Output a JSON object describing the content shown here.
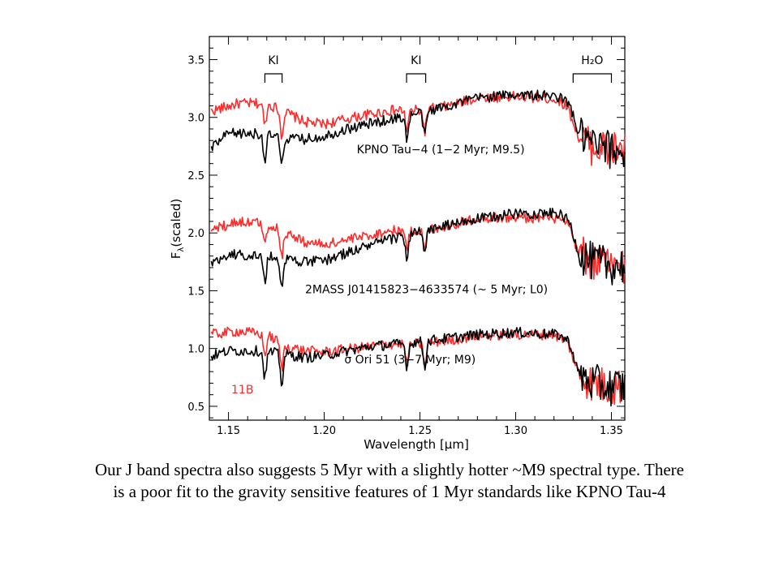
{
  "chart_data": {
    "type": "line",
    "xlabel": "Wavelength [μm]",
    "ylabel_main": "F",
    "ylabel_sub": "λ",
    "ylabel_rest": "(scaled)",
    "xlim": [
      1.14,
      1.357
    ],
    "ylim": [
      0.38,
      3.7
    ],
    "xticks": [
      1.15,
      1.2,
      1.25,
      1.3,
      1.35
    ],
    "xtick_labels": [
      "1.15",
      "1.20",
      "1.25",
      "1.30",
      "1.35"
    ],
    "yticks": [
      0.5,
      1.0,
      1.5,
      2.0,
      2.5,
      3.0,
      3.5
    ],
    "ytick_labels": [
      "0.5",
      "1.0",
      "1.5",
      "2.0",
      "2.5",
      "3.0",
      "3.5"
    ],
    "grid": false,
    "features": [
      {
        "label": "KI",
        "x1": 1.169,
        "x2": 1.178
      },
      {
        "label": "KI",
        "x1": 1.243,
        "x2": 1.253
      },
      {
        "label": "H₂O",
        "x1": 1.33,
        "x2": 1.35
      }
    ],
    "annotations": [
      {
        "text": "KPNO Tau−4 (1−2 Myr; M9.5)",
        "x": 1.217,
        "y": 2.69
      },
      {
        "text": "2MASS J01415823−4633574 (~ 5 Myr; L0)",
        "x": 1.19,
        "y": 1.48
      },
      {
        "text": "σ Ori 51 (3−7 Myr; M9)",
        "x": 1.2105,
        "y": 0.87
      }
    ],
    "panel_label": {
      "text": "11B",
      "color": "#ff2a2a"
    },
    "series": [
      {
        "color": "#ff2a2a",
        "offset": 3.0,
        "continuum": [
          [
            1.14,
            3.05
          ],
          [
            1.155,
            3.12
          ],
          [
            1.17,
            3.12
          ],
          [
            1.178,
            3.06
          ],
          [
            1.19,
            2.96
          ],
          [
            1.2,
            2.94
          ],
          [
            1.215,
            3.0
          ],
          [
            1.235,
            3.06
          ],
          [
            1.25,
            3.06
          ],
          [
            1.265,
            3.1
          ],
          [
            1.28,
            3.17
          ],
          [
            1.3,
            3.18
          ],
          [
            1.32,
            3.16
          ],
          [
            1.327,
            3.1
          ],
          [
            1.333,
            2.82
          ],
          [
            1.34,
            2.75
          ],
          [
            1.348,
            2.72
          ],
          [
            1.357,
            2.72
          ]
        ]
      },
      {
        "color": "#000000",
        "offset": 3.0,
        "continuum": [
          [
            1.14,
            2.72
          ],
          [
            1.15,
            2.86
          ],
          [
            1.165,
            2.86
          ],
          [
            1.18,
            2.82
          ],
          [
            1.19,
            2.81
          ],
          [
            1.2,
            2.84
          ],
          [
            1.212,
            2.9
          ],
          [
            1.225,
            2.95
          ],
          [
            1.24,
            3.0
          ],
          [
            1.26,
            3.08
          ],
          [
            1.28,
            3.17
          ],
          [
            1.3,
            3.2
          ],
          [
            1.322,
            3.18
          ],
          [
            1.328,
            3.12
          ],
          [
            1.333,
            2.85
          ],
          [
            1.34,
            2.76
          ],
          [
            1.348,
            2.72
          ],
          [
            1.357,
            2.72
          ]
        ]
      },
      {
        "color": "#ff2a2a",
        "offset": 2.0,
        "continuum": [
          [
            1.14,
            2.02
          ],
          [
            1.155,
            2.1
          ],
          [
            1.17,
            2.08
          ],
          [
            1.18,
            2.0
          ],
          [
            1.19,
            1.92
          ],
          [
            1.2,
            1.9
          ],
          [
            1.215,
            1.95
          ],
          [
            1.235,
            2.02
          ],
          [
            1.25,
            2.02
          ],
          [
            1.265,
            2.06
          ],
          [
            1.28,
            2.13
          ],
          [
            1.3,
            2.13
          ],
          [
            1.32,
            2.13
          ],
          [
            1.327,
            2.08
          ],
          [
            1.333,
            1.82
          ],
          [
            1.34,
            1.75
          ],
          [
            1.348,
            1.72
          ],
          [
            1.357,
            1.72
          ]
        ]
      },
      {
        "color": "#000000",
        "offset": 2.0,
        "continuum": [
          [
            1.14,
            1.72
          ],
          [
            1.15,
            1.82
          ],
          [
            1.165,
            1.8
          ],
          [
            1.18,
            1.78
          ],
          [
            1.19,
            1.75
          ],
          [
            1.2,
            1.76
          ],
          [
            1.212,
            1.83
          ],
          [
            1.225,
            1.9
          ],
          [
            1.24,
            1.97
          ],
          [
            1.26,
            2.05
          ],
          [
            1.28,
            2.12
          ],
          [
            1.3,
            2.17
          ],
          [
            1.322,
            2.17
          ],
          [
            1.328,
            2.1
          ],
          [
            1.333,
            1.82
          ],
          [
            1.34,
            1.75
          ],
          [
            1.348,
            1.72
          ],
          [
            1.357,
            1.72
          ]
        ]
      },
      {
        "color": "#ff2a2a",
        "offset": 1.0,
        "continuum": [
          [
            1.14,
            1.12
          ],
          [
            1.155,
            1.15
          ],
          [
            1.17,
            1.12
          ],
          [
            1.18,
            1.02
          ],
          [
            1.19,
            0.98
          ],
          [
            1.2,
            0.97
          ],
          [
            1.215,
            1.0
          ],
          [
            1.235,
            1.04
          ],
          [
            1.25,
            1.04
          ],
          [
            1.265,
            1.07
          ],
          [
            1.28,
            1.11
          ],
          [
            1.3,
            1.12
          ],
          [
            1.32,
            1.12
          ],
          [
            1.327,
            1.06
          ],
          [
            1.333,
            0.78
          ],
          [
            1.34,
            0.7
          ],
          [
            1.348,
            0.67
          ],
          [
            1.357,
            0.67
          ]
        ]
      },
      {
        "color": "#000000",
        "offset": 1.0,
        "continuum": [
          [
            1.14,
            0.93
          ],
          [
            1.15,
            0.98
          ],
          [
            1.165,
            0.98
          ],
          [
            1.18,
            0.95
          ],
          [
            1.19,
            0.92
          ],
          [
            1.2,
            0.94
          ],
          [
            1.212,
            0.98
          ],
          [
            1.225,
            1.02
          ],
          [
            1.24,
            1.04
          ],
          [
            1.26,
            1.08
          ],
          [
            1.28,
            1.12
          ],
          [
            1.3,
            1.14
          ],
          [
            1.322,
            1.12
          ],
          [
            1.328,
            1.06
          ],
          [
            1.333,
            0.78
          ],
          [
            1.34,
            0.7
          ],
          [
            1.348,
            0.67
          ],
          [
            1.357,
            0.67
          ]
        ]
      }
    ]
  },
  "caption": {
    "line1": "Our J band spectra also suggests 5 Myr with a slightly hotter ~M9 spectral type. There",
    "line2": "is a poor fit to the gravity sensitive features of 1 Myr standards like KPNO Tau-4"
  }
}
